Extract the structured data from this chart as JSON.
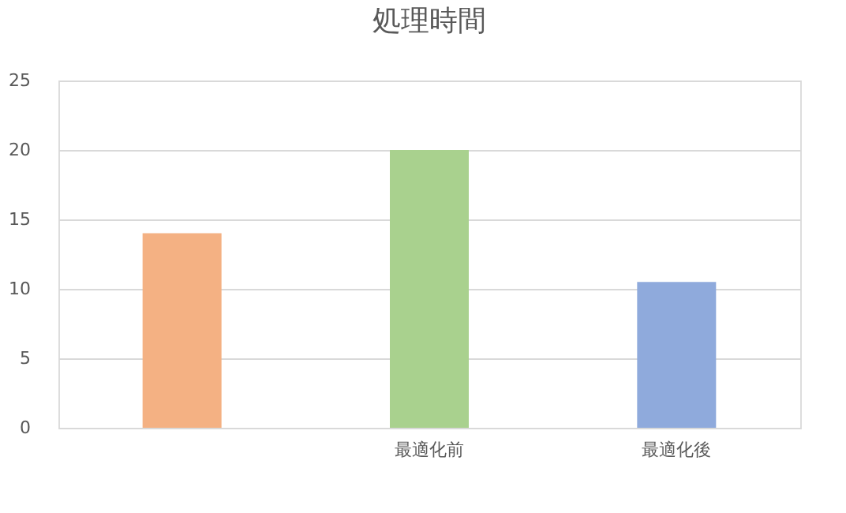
{
  "chart_data": {
    "type": "bar",
    "title": "処理時間",
    "categories": [
      null,
      "最適化前",
      "最適化後"
    ],
    "values": [
      14,
      20,
      10.5
    ],
    "colors": [
      "#f4b183",
      "#a9d18e",
      "#8faadc"
    ],
    "ylim": [
      0,
      25
    ],
    "yticks": [
      0,
      5,
      10,
      15,
      20,
      25
    ],
    "grid": "y"
  }
}
